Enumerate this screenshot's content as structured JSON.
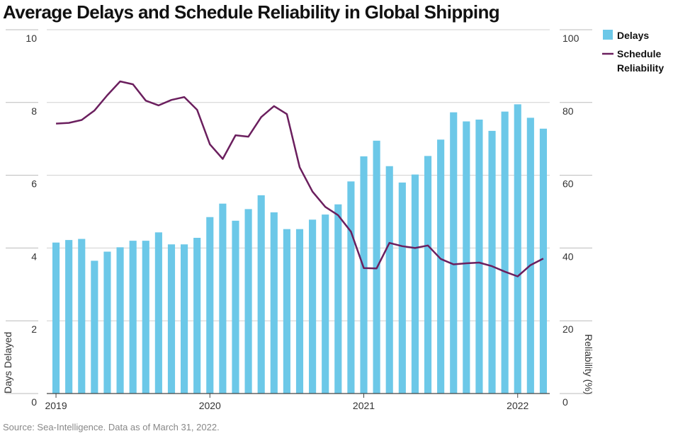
{
  "title": "Average Delays and Schedule Reliability in Global Shipping",
  "source": "Source: Sea-Intelligence. Data as of March 31, 2022.",
  "colors": {
    "bars": "#6cc8e8",
    "line": "#6b1f5e",
    "grid": "#d0d0d0",
    "axis": "#444444"
  },
  "chart_data": {
    "type": "bar",
    "title": "Average Delays and Schedule Reliability in Global Shipping",
    "xlabel": "",
    "ylabel": "Days Delayed",
    "y2label": "Reliability (%)",
    "ylim": [
      0,
      10
    ],
    "y2lim": [
      0,
      100
    ],
    "yticks": [
      0,
      2,
      4,
      6,
      8,
      10
    ],
    "y2ticks": [
      0,
      20,
      40,
      60,
      80,
      100
    ],
    "x_tick_labels": [
      {
        "label": "2019",
        "index": 0
      },
      {
        "label": "2020",
        "index": 12
      },
      {
        "label": "2021",
        "index": 24
      },
      {
        "label": "2022",
        "index": 36
      }
    ],
    "grid": true,
    "legend_position": "top-right",
    "series": [
      {
        "name": "Delays",
        "type": "bar",
        "axis": "left",
        "values": [
          4.15,
          4.22,
          4.25,
          3.65,
          3.9,
          4.02,
          4.2,
          4.2,
          4.43,
          4.1,
          4.1,
          4.28,
          4.85,
          5.22,
          4.75,
          5.07,
          5.45,
          4.98,
          4.52,
          4.52,
          4.78,
          4.92,
          5.2,
          5.83,
          6.52,
          6.95,
          6.25,
          5.8,
          6.02,
          6.53,
          6.98,
          7.73,
          7.48,
          7.53,
          7.22,
          7.75,
          7.95,
          7.58,
          7.28
        ]
      },
      {
        "name": "Schedule Reliability",
        "type": "line",
        "axis": "right",
        "values": [
          74.2,
          74.4,
          75.2,
          77.8,
          82,
          85.8,
          85,
          80.5,
          79.2,
          80.7,
          81.5,
          78,
          68.5,
          64.5,
          71,
          70.6,
          76,
          79,
          76.8,
          62.2,
          55.5,
          51.3,
          49,
          44.5,
          34.5,
          34.4,
          41.4,
          40.5,
          40,
          40.7,
          37,
          35.5,
          35.8,
          36,
          35,
          33.5,
          32.2,
          35.3,
          37.1
        ]
      }
    ]
  }
}
